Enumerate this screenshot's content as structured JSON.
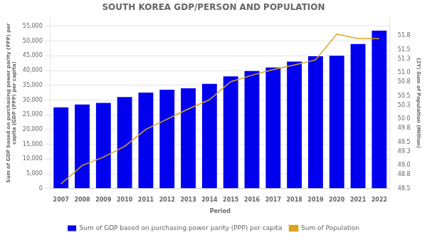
{
  "chart_data": {
    "type": "bar",
    "title": "SOUTH KOREA GDP/PERSON AND POPULATION",
    "x_label": "Period",
    "y_label": "Sum of GDP based on purchasing power parity (PPP) per\ncapita (GDP (PPP) per capita)",
    "y2_label": "(2Y) Sum of Population (Million)",
    "categories": [
      "2007",
      "2008",
      "2009",
      "2010",
      "2011",
      "2012",
      "2013",
      "2014",
      "2015",
      "2016",
      "2017",
      "2018",
      "2019",
      "2020",
      "2021",
      "2022"
    ],
    "series": [
      {
        "name": "Sum of GDP based on purchasing power parity (PPP) per capita",
        "type": "bar",
        "color": "#0000EE",
        "values": [
          27500,
          28500,
          29000,
          31000,
          32500,
          33500,
          34000,
          35500,
          38000,
          39800,
          41000,
          43000,
          44800,
          45000,
          49000,
          53500
        ]
      },
      {
        "name": "Sum of Population",
        "type": "line",
        "color": "#DAA520",
        "marker": "none",
        "axis": "y2",
        "values": [
          48.6,
          49.0,
          49.18,
          49.41,
          49.78,
          50.0,
          50.22,
          50.42,
          50.81,
          50.95,
          51.07,
          51.17,
          51.28,
          51.84,
          51.74,
          51.74
        ]
      }
    ],
    "ylim": [
      0,
      58000
    ],
    "yticks": [
      0,
      {
        "value": 5000,
        "label": "5,000"
      },
      {
        "value": 10000,
        "label": "10,000"
      },
      {
        "value": 15000,
        "label": "15,000"
      },
      {
        "value": 20000,
        "label": "20,000"
      },
      {
        "value": 25000,
        "label": "25,000"
      },
      {
        "value": 30000,
        "label": "30,000"
      },
      {
        "value": 35000,
        "label": "35,000"
      },
      {
        "value": 40000,
        "label": "40,000"
      },
      {
        "value": 45000,
        "label": "45,000"
      },
      {
        "value": 50000,
        "label": "50,000"
      },
      {
        "value": 55000,
        "label": "55,000"
      }
    ],
    "y2lim": [
      48.5,
      52.2
    ],
    "y2ticks": [
      48.5,
      48.8,
      {
        "value": 49.0,
        "label": "49.0"
      },
      49.3,
      49.5,
      49.8,
      {
        "value": 50.0,
        "label": "50.0"
      },
      50.3,
      50.5,
      50.8,
      {
        "value": 51.0,
        "label": "51.0"
      },
      51.3,
      51.5,
      51.8
    ],
    "grid": true,
    "legend": "bottom"
  }
}
